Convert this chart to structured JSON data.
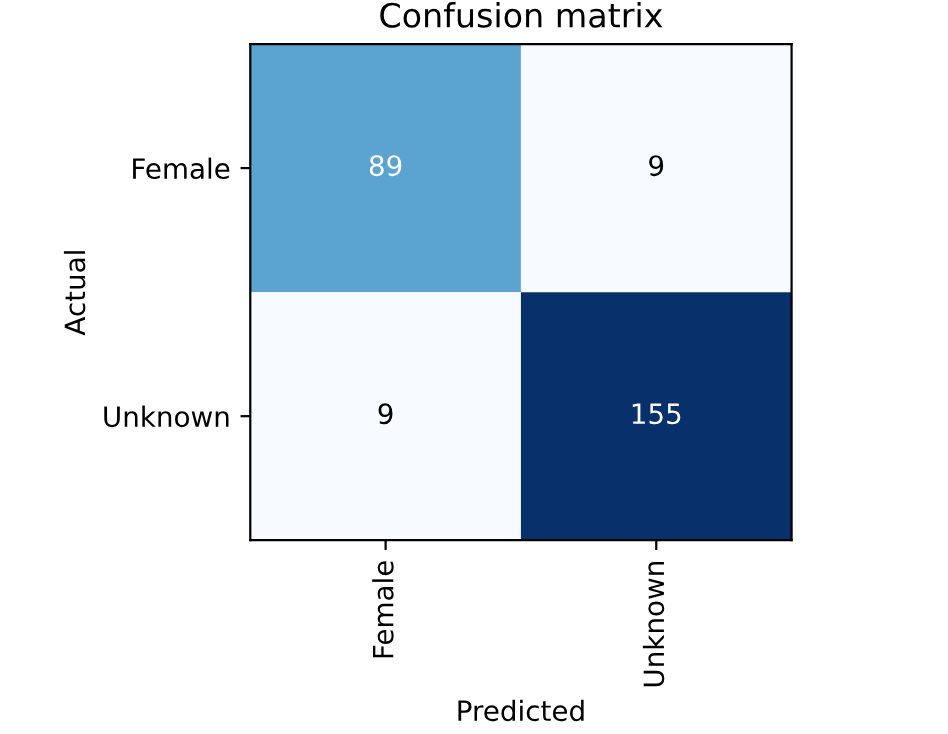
{
  "chart_data": {
    "type": "heatmap",
    "title": "Confusion matrix",
    "xlabel": "Predicted",
    "ylabel": "Actual",
    "categories": [
      "Female",
      "Unknown"
    ],
    "y_categories": [
      "Female",
      "Unknown"
    ],
    "cells": [
      [
        89,
        9
      ],
      [
        9,
        155
      ]
    ],
    "data_labels": true
  }
}
